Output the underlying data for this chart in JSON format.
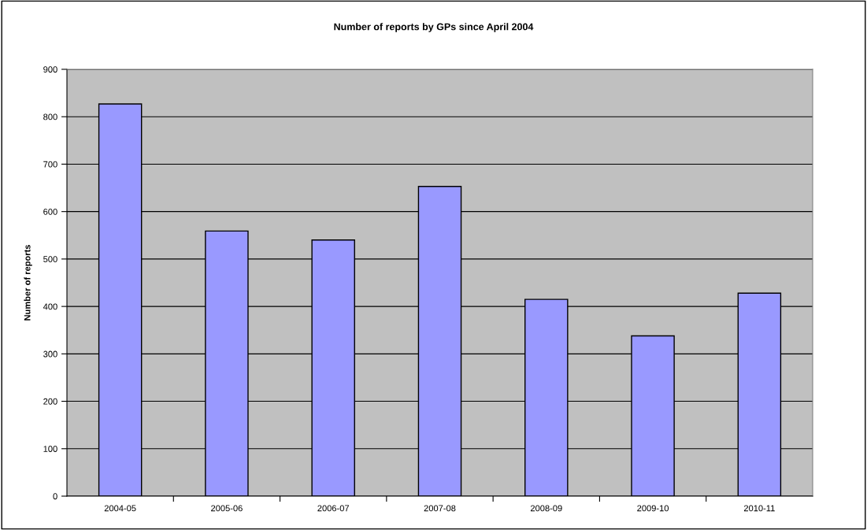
{
  "chart_data": {
    "type": "bar",
    "title": "Number of reports by GPs since April 2004",
    "ylabel": "Number of reports",
    "categories": [
      "2004-05",
      "2005-06",
      "2006-07",
      "2007-08",
      "2008-09",
      "2009-10",
      "2010-11"
    ],
    "values": [
      827,
      559,
      540,
      653,
      415,
      338,
      428
    ],
    "color": "#9999ff",
    "ylim": [
      0,
      900
    ],
    "yticks": [
      0,
      100,
      200,
      300,
      400,
      500,
      600,
      700,
      800,
      900
    ],
    "grid": "y",
    "legend": false
  }
}
